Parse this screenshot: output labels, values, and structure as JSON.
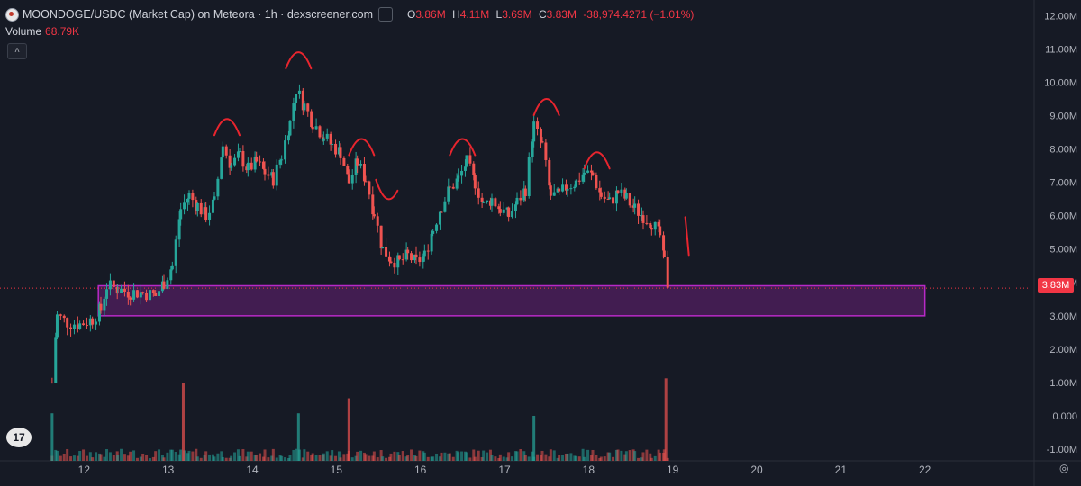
{
  "header": {
    "title": "MOONDOGE/USDC (Market Cap) on Meteora · 1h · dexscreener.com",
    "ohlc": [
      {
        "key": "O",
        "value": "3.86M"
      },
      {
        "key": "H",
        "value": "4.11M"
      },
      {
        "key": "L",
        "value": "3.69M"
      },
      {
        "key": "C",
        "value": "3.83M"
      }
    ],
    "change": "-38,974.4271 (−1.01%)"
  },
  "volume": {
    "label": "Volume",
    "value": "68.79K"
  },
  "collapse_icon": "˄",
  "logo_text": "17",
  "current_price_label": "3.83M",
  "settings_icon": "◎",
  "colors": {
    "up": "#26a69a",
    "down": "#ef5350",
    "zone": "#b829c7",
    "annotation": "#e8252e",
    "background": "#161a25"
  },
  "chart_data": {
    "type": "candlestick",
    "y_axis_labels": [
      "12.00M",
      "11.00M",
      "10.00M",
      "9.00M",
      "8.00M",
      "7.00M",
      "6.00M",
      "5.00M",
      "4.00M",
      "3.00M",
      "2.00M",
      "1.00M",
      "0.000",
      "-1.00M"
    ],
    "y_axis_values": [
      12,
      11,
      10,
      9,
      8,
      7,
      6,
      5,
      4,
      3,
      2,
      1,
      0,
      -1
    ],
    "x_axis_labels": [
      "12",
      "13",
      "14",
      "15",
      "16",
      "17",
      "18",
      "19",
      "20",
      "21",
      "22"
    ],
    "x_axis_values": [
      12,
      13,
      14,
      15,
      16,
      17,
      18,
      19,
      20,
      21,
      22
    ],
    "x_range": [
      11.0,
      23.3
    ],
    "y_range": [
      -1.35,
      12.2
    ],
    "current_price": 3.83,
    "zone": {
      "x_from": 12.17,
      "x_to": 22.0,
      "y_from": 3.0,
      "y_to": 3.9
    },
    "price_path": [
      [
        11.62,
        1.0
      ],
      [
        11.68,
        3.0
      ],
      [
        11.8,
        2.8
      ],
      [
        11.95,
        2.75
      ],
      [
        12.1,
        2.9
      ],
      [
        12.2,
        3.2
      ],
      [
        12.27,
        3.9
      ],
      [
        12.4,
        3.8
      ],
      [
        12.55,
        3.7
      ],
      [
        12.7,
        3.7
      ],
      [
        12.85,
        3.6
      ],
      [
        12.95,
        4.0
      ],
      [
        13.05,
        4.5
      ],
      [
        13.15,
        6.2
      ],
      [
        13.25,
        6.6
      ],
      [
        13.35,
        6.3
      ],
      [
        13.45,
        6.0
      ],
      [
        13.55,
        6.4
      ],
      [
        13.65,
        8.1
      ],
      [
        13.75,
        7.5
      ],
      [
        13.85,
        7.8
      ],
      [
        13.95,
        7.4
      ],
      [
        14.05,
        7.6
      ],
      [
        14.15,
        7.3
      ],
      [
        14.25,
        7.1
      ],
      [
        14.35,
        7.8
      ],
      [
        14.45,
        8.8
      ],
      [
        14.52,
        9.8
      ],
      [
        14.62,
        9.3
      ],
      [
        14.72,
        8.8
      ],
      [
        14.85,
        8.4
      ],
      [
        14.95,
        8.1
      ],
      [
        15.05,
        7.9
      ],
      [
        15.15,
        7.0
      ],
      [
        15.25,
        7.6
      ],
      [
        15.35,
        7.1
      ],
      [
        15.45,
        6.1
      ],
      [
        15.55,
        5.0
      ],
      [
        15.65,
        4.7
      ],
      [
        15.75,
        4.6
      ],
      [
        15.85,
        4.8
      ],
      [
        15.95,
        4.6
      ],
      [
        16.05,
        4.8
      ],
      [
        16.15,
        5.6
      ],
      [
        16.25,
        6.3
      ],
      [
        16.35,
        6.8
      ],
      [
        16.45,
        7.1
      ],
      [
        16.55,
        7.6
      ],
      [
        16.65,
        7.0
      ],
      [
        16.75,
        6.3
      ],
      [
        16.85,
        6.5
      ],
      [
        16.95,
        6.2
      ],
      [
        17.05,
        6.0
      ],
      [
        17.15,
        6.4
      ],
      [
        17.25,
        6.8
      ],
      [
        17.35,
        8.7
      ],
      [
        17.45,
        8.1
      ],
      [
        17.55,
        6.6
      ],
      [
        17.65,
        6.6
      ],
      [
        17.75,
        6.9
      ],
      [
        17.85,
        7.0
      ],
      [
        17.95,
        7.3
      ],
      [
        18.05,
        7.2
      ],
      [
        18.15,
        6.6
      ],
      [
        18.25,
        6.4
      ],
      [
        18.35,
        6.7
      ],
      [
        18.45,
        6.5
      ],
      [
        18.55,
        6.2
      ],
      [
        18.65,
        6.0
      ],
      [
        18.75,
        5.8
      ],
      [
        18.85,
        5.4
      ],
      [
        18.9,
        4.6
      ],
      [
        18.95,
        3.83
      ]
    ],
    "volume_spikes": [
      {
        "x": 11.62,
        "v": 0.95
      },
      {
        "x": 13.18,
        "v": 1.55
      },
      {
        "x": 14.55,
        "v": 0.95
      },
      {
        "x": 15.15,
        "v": 1.25
      },
      {
        "x": 17.35,
        "v": 0.9
      },
      {
        "x": 18.92,
        "v": 1.65
      }
    ],
    "annotations": [
      {
        "type": "arc",
        "x": 13.7,
        "y": 8.9
      },
      {
        "type": "arc",
        "x": 14.55,
        "y": 10.9
      },
      {
        "type": "arc",
        "x": 15.3,
        "y": 8.3
      },
      {
        "type": "dip",
        "x": 15.6,
        "y": 6.7
      },
      {
        "type": "arc",
        "x": 16.5,
        "y": 8.3
      },
      {
        "type": "arc",
        "x": 17.5,
        "y": 9.5
      },
      {
        "type": "arc",
        "x": 18.1,
        "y": 7.9
      },
      {
        "type": "tick",
        "x": 19.15,
        "y": 5.9
      }
    ]
  }
}
